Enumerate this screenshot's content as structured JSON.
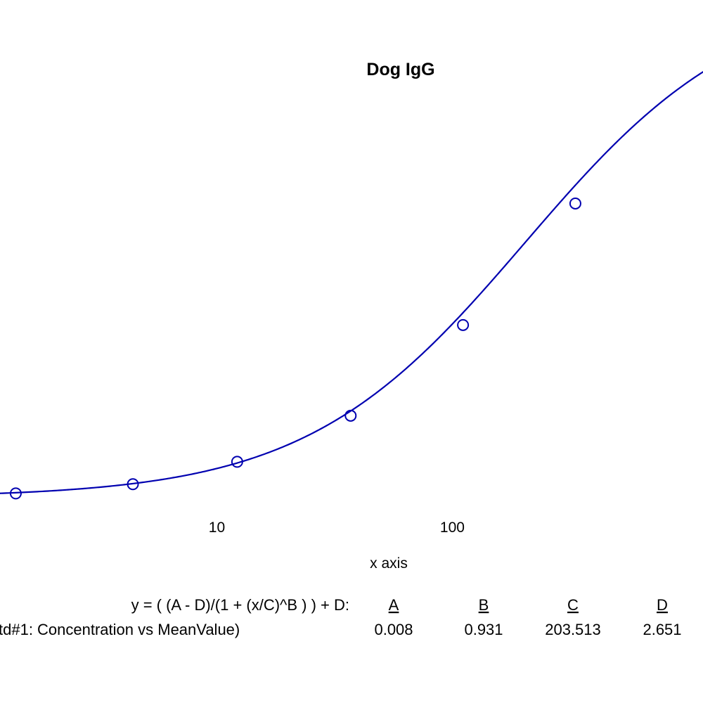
{
  "chart_data": {
    "type": "scatter",
    "title": "Dog IgG",
    "xlabel": "x axis",
    "ylabel": "",
    "x_scale": "log",
    "x_ticks": [
      {
        "value": 10,
        "label": "10"
      },
      {
        "value": 100,
        "label": "100"
      }
    ],
    "xlim": [
      1.2,
      1160
    ],
    "ylim": [
      0.0,
      2.15
    ],
    "series": [
      {
        "color": "#0000b0",
        "marker": "circle",
        "x": [
          1.4,
          4.4,
          12.2,
          37.0,
          111.0,
          333.0
        ],
        "y": [
          0.0295,
          0.0775,
          0.1935,
          0.4325,
          0.9025,
          1.5325
        ]
      }
    ],
    "fit": {
      "model": "4PL",
      "equation": "y = ( (A - D)/(1 + (x/C)^B ) ) + D:",
      "label": "td#1: Concentration vs MeanValue)",
      "params": [
        {
          "name": "A",
          "value": "0.008"
        },
        {
          "name": "B",
          "value": "0.931"
        },
        {
          "name": "C",
          "value": "203.513"
        },
        {
          "name": "D",
          "value": "2.651"
        }
      ]
    },
    "grid": false,
    "legend": "none"
  }
}
